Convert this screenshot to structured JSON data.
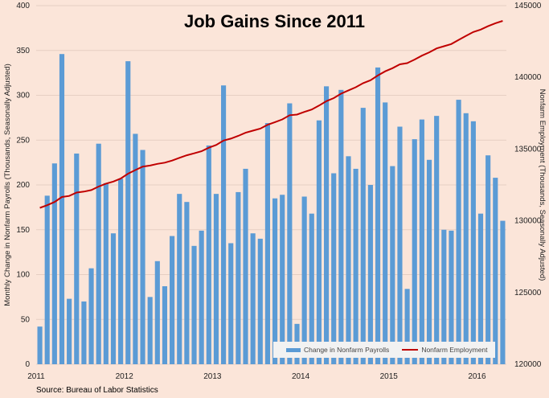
{
  "chart_data": {
    "type": "bar+line",
    "title": "Job Gains Since 2011",
    "source": "Source: Bureau of Labor Statistics",
    "ylabel_left": "Monthly Change in Nonfarm Payrolls (Thousands, Seasonally Adjusted)",
    "ylabel_right": "Nonfarm Employment (Thousands, Seasonally Adjusted)",
    "ylim_left": [
      0,
      400
    ],
    "ylim_right": [
      120000,
      145000
    ],
    "yticks_left": [
      "0",
      "50",
      "100",
      "150",
      "200",
      "250",
      "300",
      "350",
      "400"
    ],
    "yticks_right": [
      "120000",
      "125000",
      "130000",
      "135000",
      "140000",
      "145000"
    ],
    "xticks": [
      "2011",
      "2012",
      "2013",
      "2014",
      "2015",
      "2016"
    ],
    "grid": true,
    "legend_position": "bottom-right",
    "colors": {
      "bars": "#5b9bd5",
      "line": "#c00000",
      "background": "#fbe5d9"
    },
    "series": [
      {
        "name": "Change in Nonfarm Payrolls",
        "type": "bar",
        "values": [
          42,
          188,
          224,
          346,
          73,
          235,
          70,
          107,
          246,
          202,
          146,
          207,
          338,
          257,
          239,
          75,
          115,
          87,
          143,
          190,
          181,
          132,
          149,
          244,
          190,
          311,
          135,
          192,
          218,
          146,
          140,
          269,
          185,
          189,
          291,
          45,
          187,
          168,
          272,
          310,
          213,
          306,
          232,
          218,
          286,
          200,
          331,
          292,
          221,
          265,
          84,
          251,
          273,
          228,
          277,
          150,
          149,
          295,
          280,
          271,
          168,
          233,
          208,
          160
        ]
      },
      {
        "name": "Nonfarm Employment",
        "type": "line",
        "values": [
          130900,
          131088,
          131312,
          131658,
          131731,
          131966,
          132036,
          132143,
          132389,
          132591,
          132737,
          132944,
          133282,
          133539,
          133778,
          133853,
          133968,
          134055,
          134198,
          134388,
          134569,
          134701,
          134850,
          135094,
          135284,
          135595,
          135730,
          135922,
          136140,
          136286,
          136426,
          136695,
          136880,
          137069,
          137360,
          137405,
          137592,
          137760,
          138032,
          138342,
          138555,
          138861,
          139093,
          139311,
          139597,
          139797,
          140128,
          140420,
          140641,
          140906,
          140990,
          141241,
          141514,
          141742,
          142019,
          142169,
          142318,
          142613,
          142893,
          143164,
          143332,
          143565,
          143773,
          143933
        ]
      }
    ]
  }
}
